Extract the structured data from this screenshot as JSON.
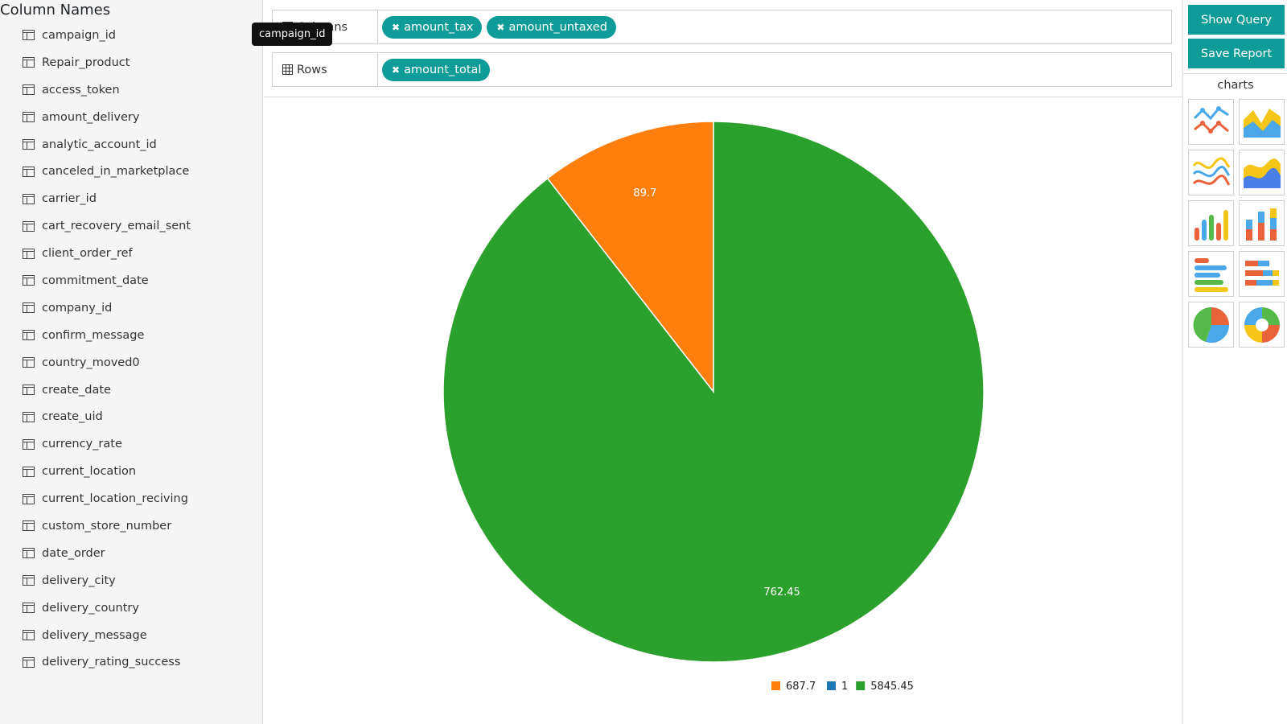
{
  "sidebar": {
    "title": "Column Names",
    "tooltip": "campaign_id",
    "columns": [
      "campaign_id",
      "Repair_product",
      "access_token",
      "amount_delivery",
      "analytic_account_id",
      "canceled_in_marketplace",
      "carrier_id",
      "cart_recovery_email_sent",
      "client_order_ref",
      "commitment_date",
      "company_id",
      "confirm_message",
      "country_moved0",
      "create_date",
      "create_uid",
      "currency_rate",
      "current_location",
      "current_location_reciving",
      "custom_store_number",
      "date_order",
      "delivery_city",
      "delivery_country",
      "delivery_message",
      "delivery_rating_success"
    ]
  },
  "builder": {
    "columns_label": "Columns",
    "column_chips": [
      "amount_tax",
      "amount_untaxed"
    ],
    "rows_label": "Rows",
    "row_chips": [
      "amount_total"
    ]
  },
  "actions": {
    "show_query": "Show Query",
    "save_report": "Save Report"
  },
  "charts_panel": {
    "title": "charts",
    "types": [
      "line-chart-icon",
      "area-chart-icon",
      "spline-chart-icon",
      "spline-area-chart-icon",
      "bar-chart-icon",
      "stacked-bar-chart-icon",
      "horizontal-bar-chart-icon",
      "stacked-horizontal-bar-chart-icon",
      "pie-chart-icon",
      "donut-chart-icon"
    ]
  },
  "colors": {
    "accent": "#0f9c99",
    "orange": "#ff7f0e",
    "blue": "#1f77b4",
    "green": "#2ca02c"
  },
  "chart_data": {
    "type": "pie",
    "slices": [
      {
        "label": "687.7",
        "value": 89.7,
        "color": "#ff7f0e"
      },
      {
        "label": "1",
        "value": 0,
        "color": "#1f77b4"
      },
      {
        "label": "5845.45",
        "value": 762.45,
        "color": "#2ca02c"
      }
    ],
    "legend_position": "bottom"
  }
}
